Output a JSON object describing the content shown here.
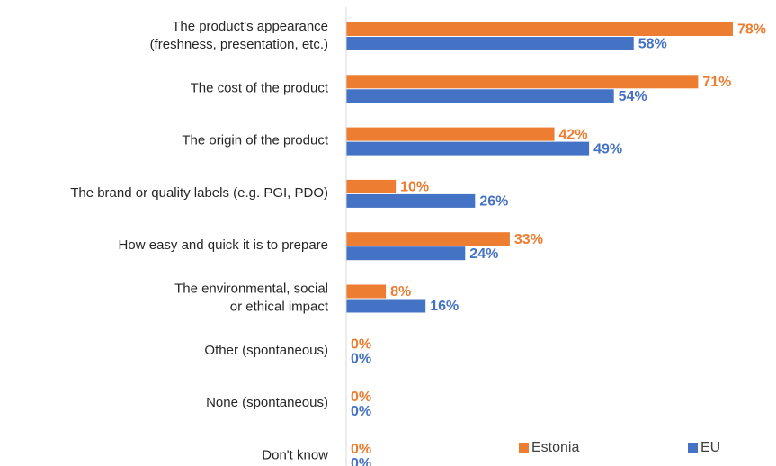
{
  "chart_data": {
    "type": "hbar",
    "categories": [
      "The product's appearance\n(freshness, presentation, etc.)",
      "The cost of the product",
      "The origin of the product",
      "The brand or quality labels (e.g. PGI, PDO)",
      "How easy and quick it is to prepare",
      "The environmental, social\nor ethical impact",
      "Other (spontaneous)",
      "None (spontaneous)",
      "Don't know"
    ],
    "series": [
      {
        "name": "Estonia",
        "color": "#ED7D31",
        "values": [
          78,
          71,
          42,
          10,
          33,
          8,
          0,
          0,
          0
        ],
        "value_labels": [
          "78%",
          "71%",
          "42%",
          "10%",
          "33%",
          "8%",
          "0%",
          "0%",
          "0%"
        ]
      },
      {
        "name": "EU",
        "color": "#4472C4",
        "values": [
          58,
          54,
          49,
          26,
          24,
          16,
          0,
          0,
          0
        ],
        "value_labels": [
          "58%",
          "54%",
          "49%",
          "26%",
          "24%",
          "16%",
          "0%",
          "0%",
          "0%"
        ]
      }
    ],
    "xlim": [
      0,
      80
    ],
    "legend": "lower right"
  }
}
